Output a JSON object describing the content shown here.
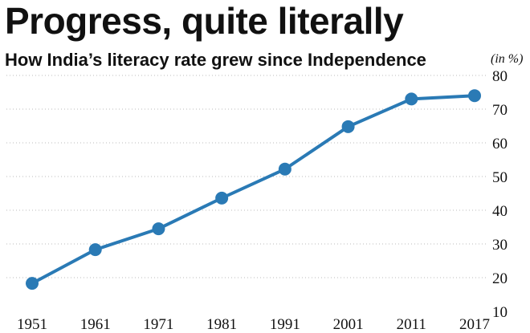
{
  "chart_data": {
    "type": "line",
    "title": "Progress, quite literally",
    "subtitle": "How India’s literacy rate grew since Independence",
    "unit_label": "(in %)",
    "x": [
      "1951",
      "1961",
      "1971",
      "1981",
      "1991",
      "2001",
      "2011",
      "2017"
    ],
    "series": [
      {
        "values": [
          18.3,
          28.3,
          34.5,
          43.6,
          52.2,
          64.8,
          73.0,
          74.0
        ]
      }
    ],
    "yticks": [
      10,
      20,
      30,
      40,
      50,
      60,
      70,
      80
    ],
    "ylim": [
      10,
      80
    ],
    "grid": true,
    "legend": "none",
    "line_color": "#2a7ab5",
    "marker_color": "#2a7ab5",
    "grid_color": "#bbbbbb"
  }
}
